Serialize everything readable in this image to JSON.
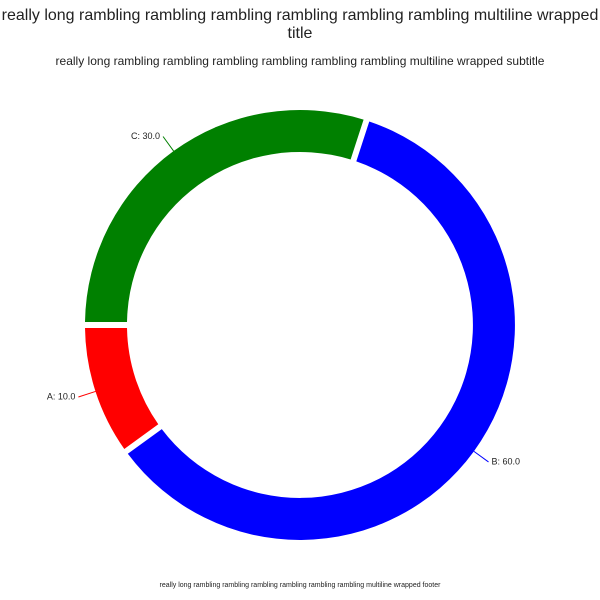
{
  "chart_data": {
    "type": "pie",
    "variant": "donut",
    "title": "really long rambling rambling rambling rambling rambling rambling multiline wrapped title",
    "subtitle": "really long rambling rambling rambling rambling rambling rambling multiline wrapped subtitle",
    "footer": "really long rambling rambling rambling rambling rambling rambling multiline wrapped footer",
    "categories": [
      "A",
      "B",
      "C"
    ],
    "values": [
      10.0,
      60.0,
      30.0
    ],
    "labels": [
      "A: 10.0",
      "B: 60.0",
      "C: 30.0"
    ],
    "colors": [
      "#ff0000",
      "#0000ff",
      "#008000"
    ],
    "legend": "none"
  }
}
